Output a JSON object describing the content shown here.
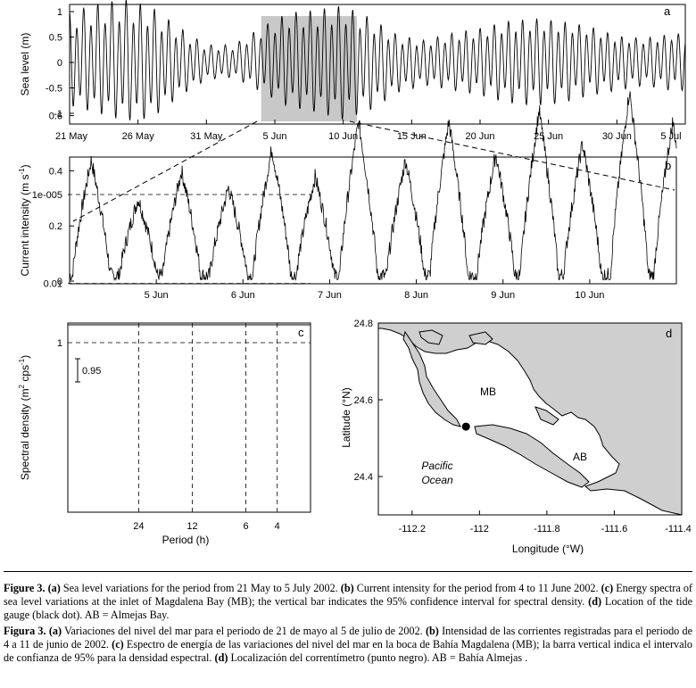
{
  "panels": {
    "a": {
      "letter": "a",
      "ylabel": "Sea level (m)",
      "yticks": [
        "1",
        "0.5",
        "0",
        "-0.5",
        "-1"
      ],
      "xticks": [
        "21 May",
        "26 May",
        "31 May",
        "5 Jun",
        "10 Jun",
        "15 Jun",
        "20 Jun",
        "25 Jun",
        "30 Jun",
        "5 Jul"
      ]
    },
    "b": {
      "letter": "b",
      "ylabel": "Current intensity",
      "yunit_base": "(m s",
      "yunit_sup": "-1",
      "yunit_end": ")",
      "yticks": [
        "0.6",
        "0.4",
        "0.2",
        "0"
      ],
      "xticks": [
        "5 Jun",
        "6 Jun",
        "7 Jun",
        "8 Jun",
        "9 Jun",
        "10 Jun"
      ]
    },
    "c": {
      "letter": "c",
      "ylabel_base": "Spectral density (m",
      "ylabel_sup1": "2",
      "ylabel_mid": " cps",
      "ylabel_sup2": "-1",
      "ylabel_end": ")",
      "yticks": [
        "1",
        "0.01",
        "1e-005"
      ],
      "xlabel": "Period (h)",
      "xticks": [
        "24",
        "12",
        "6",
        "4"
      ],
      "ci_label": "0.95"
    },
    "d": {
      "letter": "d",
      "ylabel": "Latitude (°N)",
      "xlabel": "Longitude (°W)",
      "yticks": [
        "24.8",
        "24.6",
        "24.4"
      ],
      "xticks": [
        "-112.2",
        "-112",
        "-111.8",
        "-111.6",
        "-111.4"
      ],
      "label_mb": "MB",
      "label_ab": "AB",
      "label_ocean_1": "Pacific",
      "label_ocean_2": "Ocean",
      "colors": {
        "land": "#cfcfcf",
        "gauge": "#000000"
      }
    }
  },
  "caption_en": {
    "fig": "Figure 3.",
    "a_tag": "(a)",
    "a_text": " Sea level variations for the period from 21 May to 5 July 2002. ",
    "b_tag": "(b)",
    "b_text": " Current intensity for the period from 4 to 11 June 2002. ",
    "c_tag": "(c)",
    "c_text": " Energy spectra of sea level variations at the inlet of Magdalena Bay (MB); the vertical bar indicates the 95% confidence interval for spectral density. ",
    "d_tag": "(d)",
    "d_text": " Location of the tide gauge (black dot). AB = Almejas Bay."
  },
  "caption_es": {
    "fig": "Figura 3.",
    "a_tag": "(a)",
    "a_text": " Variaciones del nivel del mar para el periodo de 21 de mayo al 5 de julio de 2002. ",
    "b_tag": "(b)",
    "b_text": " Intensidad de las corrientes registradas para el periodo de 4 a 11 de junio de 2002. ",
    "c_tag": "(c)",
    "c_text": " Espectro de energía de las variaciones del nivel del mar en la boca de Bahía Magdalena (MB); la barra vertical indica el intervalo de confianza de 95% para la densidad espectral. ",
    "d_tag": "(d)",
    "d_text": " Localización del correntímetro (punto negro). AB = Bahía Almejas ."
  },
  "chart_data": [
    {
      "panel": "a",
      "type": "line",
      "xlabel": "",
      "ylabel": "Sea level (m)",
      "x_range": [
        "2002-05-21",
        "2002-07-05"
      ],
      "ylim": [
        -1.2,
        1.2
      ],
      "highlight_range": [
        "2002-06-04",
        "2002-06-11"
      ],
      "x_daily": [
        "2002-05-21",
        "2002-05-23",
        "2002-05-25",
        "2002-05-27",
        "2002-05-29",
        "2002-05-31",
        "2002-06-02",
        "2002-06-04",
        "2002-06-06",
        "2002-06-08",
        "2002-06-10",
        "2002-06-12",
        "2002-06-14",
        "2002-06-16",
        "2002-06-18",
        "2002-06-20",
        "2002-06-22",
        "2002-06-24",
        "2002-06-26",
        "2002-06-28",
        "2002-06-30",
        "2002-07-02",
        "2002-07-04"
      ],
      "daily_max": [
        1.0,
        1.15,
        1.25,
        1.1,
        0.7,
        0.35,
        0.35,
        0.7,
        1.0,
        1.05,
        1.15,
        0.9,
        0.55,
        0.45,
        0.6,
        0.7,
        0.85,
        0.9,
        0.85,
        0.75,
        0.55,
        0.5,
        0.6
      ],
      "daily_min": [
        -0.9,
        -1.05,
        -1.2,
        -1.15,
        -0.7,
        -0.35,
        -0.3,
        -0.6,
        -0.9,
        -1.0,
        -1.15,
        -0.95,
        -0.6,
        -0.45,
        -0.55,
        -0.65,
        -0.8,
        -0.85,
        -0.8,
        -0.65,
        -0.55,
        -0.45,
        -0.55
      ]
    },
    {
      "panel": "b",
      "type": "line",
      "xlabel": "",
      "ylabel": "Current intensity (m s-1)",
      "x_range": [
        "2002-06-04",
        "2002-06-11"
      ],
      "ylim": [
        0,
        0.75
      ],
      "x_peaks": [
        "2002-06-04 06:00",
        "2002-06-04 19:00",
        "2002-06-05 07:00",
        "2002-06-05 20:00",
        "2002-06-06 08:00",
        "2002-06-06 20:00",
        "2002-06-07 08:00",
        "2002-06-07 21:00",
        "2002-06-08 09:00",
        "2002-06-08 22:00",
        "2002-06-09 10:00",
        "2002-06-09 22:00",
        "2002-06-10 11:00",
        "2002-06-10 23:00"
      ],
      "peak_values": [
        0.44,
        0.3,
        0.4,
        0.34,
        0.48,
        0.38,
        0.58,
        0.44,
        0.58,
        0.46,
        0.62,
        0.5,
        0.69,
        0.58
      ],
      "minimum_value": 0.02
    },
    {
      "panel": "c",
      "type": "line",
      "xlabel": "Period (h)",
      "ylabel": "Spectral density (m2 cps-1)",
      "yscale": "log",
      "ylim": [
        1e-06,
        10
      ],
      "x_period_h": [
        48,
        36,
        30,
        27,
        24,
        22,
        18,
        14,
        12.9,
        12.42,
        12,
        11,
        9,
        8,
        7,
        6,
        5,
        4.5,
        4,
        3.5,
        3,
        2.8
      ],
      "values": [
        0.002,
        0.0012,
        0.001,
        0.002,
        0.45,
        0.005,
        0.0003,
        0.0002,
        0.0008,
        0.9,
        0.002,
        0.0002,
        0.0002,
        0.00015,
        0.0001,
        0.0002,
        0.0001,
        5e-05,
        3e-05,
        2e-05,
        1e-05,
        8e-06
      ],
      "confidence_95_factor": [
        0.5,
        2.0
      ]
    },
    {
      "panel": "d",
      "type": "map",
      "xlabel": "Longitude (°W)",
      "ylabel": "Latitude (°N)",
      "xlim": [
        -112.3,
        -111.4
      ],
      "ylim": [
        24.3,
        24.8
      ],
      "tide_gauge": {
        "lon": -112.04,
        "lat": 24.53
      }
    }
  ]
}
